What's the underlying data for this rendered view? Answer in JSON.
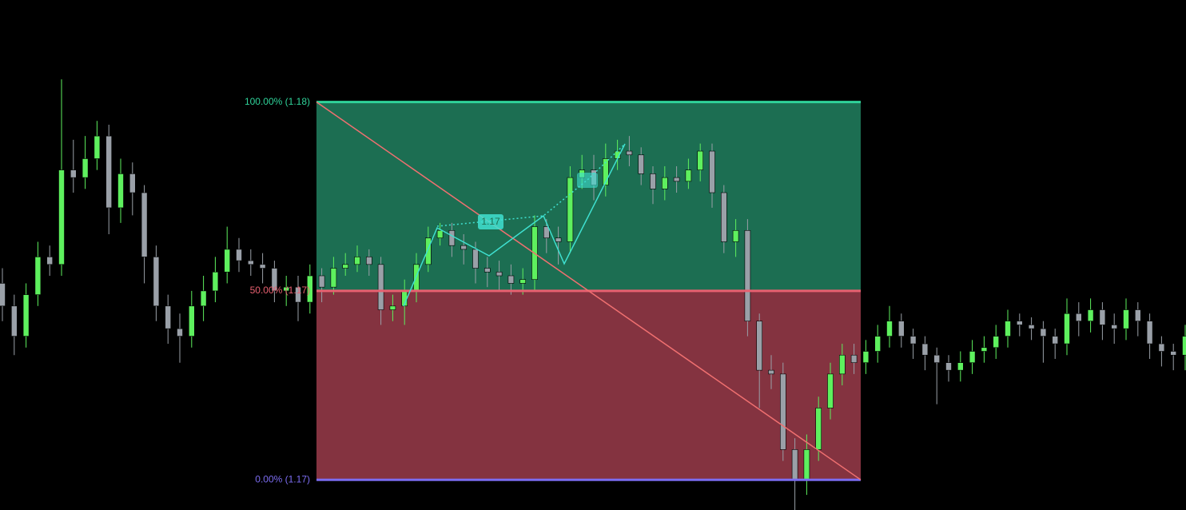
{
  "chart_data": {
    "type": "candlestick",
    "ylim": [
      1.1692,
      1.1827
    ],
    "up_color": "#5ef05e",
    "down_color": "#9aa0a8",
    "fib_levels": [
      {
        "value": 1.18,
        "label": "100.00% (1.18)",
        "color": "#2fd39a"
      },
      {
        "value": 1.175,
        "label": "50.00% (1.17)",
        "color": "#e86070"
      },
      {
        "value": 1.17,
        "label": "0.00% (1.17)",
        "color": "#7b6cf0"
      }
    ],
    "pattern_label": "1.17",
    "ohlc": [
      [
        1.1752,
        1.1756,
        1.1742,
        1.1746
      ],
      [
        1.1746,
        1.1749,
        1.1733,
        1.1738
      ],
      [
        1.1738,
        1.1752,
        1.1735,
        1.1749
      ],
      [
        1.1749,
        1.1763,
        1.1746,
        1.1759
      ],
      [
        1.1759,
        1.1762,
        1.1754,
        1.1757
      ],
      [
        1.1757,
        1.1806,
        1.1754,
        1.1782
      ],
      [
        1.1782,
        1.179,
        1.1776,
        1.178
      ],
      [
        1.178,
        1.1791,
        1.1777,
        1.1785
      ],
      [
        1.1785,
        1.1795,
        1.1782,
        1.1791
      ],
      [
        1.1791,
        1.1794,
        1.1765,
        1.1772
      ],
      [
        1.1772,
        1.1785,
        1.1768,
        1.1781
      ],
      [
        1.1781,
        1.1784,
        1.177,
        1.1776
      ],
      [
        1.1776,
        1.1778,
        1.1752,
        1.1759
      ],
      [
        1.1759,
        1.1762,
        1.1742,
        1.1746
      ],
      [
        1.1746,
        1.1749,
        1.1736,
        1.174
      ],
      [
        1.174,
        1.1744,
        1.1731,
        1.1738
      ],
      [
        1.1738,
        1.175,
        1.1735,
        1.1746
      ],
      [
        1.1746,
        1.1754,
        1.1742,
        1.175
      ],
      [
        1.175,
        1.1759,
        1.1747,
        1.1755
      ],
      [
        1.1755,
        1.1767,
        1.1752,
        1.1761
      ],
      [
        1.1761,
        1.1764,
        1.1755,
        1.1758
      ],
      [
        1.1758,
        1.1761,
        1.1754,
        1.1757
      ],
      [
        1.1757,
        1.176,
        1.1752,
        1.1756
      ],
      [
        1.1756,
        1.1758,
        1.1747,
        1.175
      ],
      [
        1.175,
        1.1754,
        1.1746,
        1.1751
      ],
      [
        1.1751,
        1.1754,
        1.1742,
        1.1747
      ],
      [
        1.1747,
        1.1757,
        1.1744,
        1.1754
      ],
      [
        1.1754,
        1.1756,
        1.1747,
        1.1751
      ],
      [
        1.1751,
        1.1759,
        1.1749,
        1.1756
      ],
      [
        1.1756,
        1.176,
        1.1754,
        1.1757
      ],
      [
        1.1757,
        1.1762,
        1.1755,
        1.1759
      ],
      [
        1.1759,
        1.1761,
        1.1754,
        1.1757
      ],
      [
        1.1757,
        1.1759,
        1.1741,
        1.1745
      ],
      [
        1.1745,
        1.1749,
        1.1742,
        1.1746
      ],
      [
        1.1746,
        1.1753,
        1.1741,
        1.175
      ],
      [
        1.175,
        1.176,
        1.1747,
        1.1757
      ],
      [
        1.1757,
        1.1767,
        1.1755,
        1.1764
      ],
      [
        1.1764,
        1.1768,
        1.1762,
        1.1766
      ],
      [
        1.1766,
        1.1768,
        1.1759,
        1.1762
      ],
      [
        1.1762,
        1.1765,
        1.1757,
        1.1761
      ],
      [
        1.1761,
        1.1763,
        1.1752,
        1.1756
      ],
      [
        1.1756,
        1.1759,
        1.1751,
        1.1755
      ],
      [
        1.1755,
        1.1758,
        1.175,
        1.1754
      ],
      [
        1.1754,
        1.1757,
        1.1749,
        1.1752
      ],
      [
        1.1752,
        1.1756,
        1.1749,
        1.1753
      ],
      [
        1.1753,
        1.177,
        1.175,
        1.1767
      ],
      [
        1.1767,
        1.1769,
        1.176,
        1.1764
      ],
      [
        1.1764,
        1.1767,
        1.1757,
        1.1763
      ],
      [
        1.1763,
        1.1783,
        1.176,
        1.178
      ],
      [
        1.178,
        1.1786,
        1.1777,
        1.1782
      ],
      [
        1.1782,
        1.1786,
        1.1774,
        1.1778
      ],
      [
        1.1778,
        1.1789,
        1.1775,
        1.1785
      ],
      [
        1.1785,
        1.179,
        1.1782,
        1.1787
      ],
      [
        1.1787,
        1.1791,
        1.1783,
        1.1786
      ],
      [
        1.1786,
        1.1788,
        1.1778,
        1.1781
      ],
      [
        1.1781,
        1.1783,
        1.1773,
        1.1777
      ],
      [
        1.1777,
        1.1783,
        1.1774,
        1.178
      ],
      [
        1.178,
        1.1783,
        1.1776,
        1.1779
      ],
      [
        1.1779,
        1.1785,
        1.1777,
        1.1782
      ],
      [
        1.1782,
        1.1789,
        1.1779,
        1.1787
      ],
      [
        1.1787,
        1.1789,
        1.1772,
        1.1776
      ],
      [
        1.1776,
        1.1778,
        1.176,
        1.1763
      ],
      [
        1.1763,
        1.1769,
        1.1759,
        1.1766
      ],
      [
        1.1766,
        1.1769,
        1.1738,
        1.1742
      ],
      [
        1.1742,
        1.1744,
        1.1719,
        1.1729
      ],
      [
        1.1729,
        1.1733,
        1.1724,
        1.1728
      ],
      [
        1.1728,
        1.1731,
        1.1705,
        1.1708
      ],
      [
        1.1708,
        1.1711,
        1.1692,
        1.17
      ],
      [
        1.17,
        1.1712,
        1.1696,
        1.1708
      ],
      [
        1.1708,
        1.1722,
        1.1705,
        1.1719
      ],
      [
        1.1719,
        1.1731,
        1.1716,
        1.1728
      ],
      [
        1.1728,
        1.1736,
        1.1725,
        1.1733
      ],
      [
        1.1733,
        1.1736,
        1.1728,
        1.1731
      ],
      [
        1.1731,
        1.1737,
        1.1728,
        1.1734
      ],
      [
        1.1734,
        1.1741,
        1.1731,
        1.1738
      ],
      [
        1.1738,
        1.1746,
        1.1735,
        1.1742
      ],
      [
        1.1742,
        1.1744,
        1.1735,
        1.1738
      ],
      [
        1.1738,
        1.174,
        1.1732,
        1.1736
      ],
      [
        1.1736,
        1.1738,
        1.1729,
        1.1733
      ],
      [
        1.1733,
        1.1735,
        1.172,
        1.1731
      ],
      [
        1.1731,
        1.1733,
        1.1726,
        1.1729
      ],
      [
        1.1729,
        1.1734,
        1.1726,
        1.1731
      ],
      [
        1.1731,
        1.1737,
        1.1728,
        1.1734
      ],
      [
        1.1734,
        1.1738,
        1.1731,
        1.1735
      ],
      [
        1.1735,
        1.1741,
        1.1732,
        1.1738
      ],
      [
        1.1738,
        1.1745,
        1.1735,
        1.1742
      ],
      [
        1.1742,
        1.1744,
        1.1738,
        1.1741
      ],
      [
        1.1741,
        1.1743,
        1.1737,
        1.174
      ],
      [
        1.174,
        1.1742,
        1.1731,
        1.1738
      ],
      [
        1.1738,
        1.174,
        1.1732,
        1.1736
      ],
      [
        1.1736,
        1.1748,
        1.1733,
        1.1744
      ],
      [
        1.1744,
        1.1747,
        1.1738,
        1.1742
      ],
      [
        1.1742,
        1.1748,
        1.1739,
        1.1745
      ],
      [
        1.1745,
        1.1747,
        1.1737,
        1.1741
      ],
      [
        1.1741,
        1.1744,
        1.1736,
        1.174
      ],
      [
        1.174,
        1.1748,
        1.1737,
        1.1745
      ],
      [
        1.1745,
        1.1747,
        1.1738,
        1.1742
      ],
      [
        1.1742,
        1.1744,
        1.1732,
        1.1736
      ],
      [
        1.1736,
        1.1738,
        1.173,
        1.1734
      ],
      [
        1.1734,
        1.1736,
        1.1729,
        1.1733
      ],
      [
        1.1733,
        1.1741,
        1.1729,
        1.1738
      ]
    ]
  }
}
